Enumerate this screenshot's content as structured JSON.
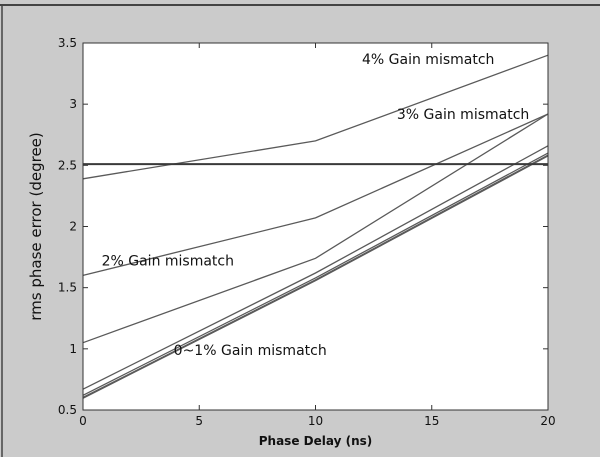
{
  "colors": {
    "frame_bg": "#cbcbcb",
    "axes_bg": "#ffffff",
    "line": "#5a5a5a",
    "threshold_line": "#3a3a3a",
    "text": "#111111"
  },
  "chart_data": {
    "type": "line",
    "title": "",
    "xlabel": "Phase Delay (ns)",
    "ylabel": "rms phase error (degree)",
    "xlim": [
      0,
      20
    ],
    "ylim": [
      0.5,
      3.5
    ],
    "xticks": [
      0,
      5,
      10,
      15,
      20
    ],
    "yticks": [
      0.5,
      1,
      1.5,
      2,
      2.5,
      3,
      3.5
    ],
    "xtick_labels": [
      "0",
      "5",
      "10",
      "15",
      "20"
    ],
    "ytick_labels": [
      "0.5",
      "1",
      "1.5",
      "2",
      "2.5",
      "3",
      "3.5"
    ],
    "grid": false,
    "legend": "none",
    "series": [
      {
        "x": [
          0,
          10,
          20
        ],
        "values": [
          0.6,
          1.56,
          2.58
        ]
      },
      {
        "x": [
          0,
          10,
          20
        ],
        "values": [
          0.62,
          1.58,
          2.6
        ]
      },
      {
        "x": [
          0,
          10,
          20
        ],
        "values": [
          0.67,
          1.62,
          2.66
        ]
      },
      {
        "x": [
          0,
          10,
          20
        ],
        "values": [
          1.05,
          1.74,
          2.92
        ]
      },
      {
        "x": [
          0,
          10,
          20
        ],
        "values": [
          1.6,
          2.07,
          2.92
        ]
      },
      {
        "x": [
          0,
          10,
          20
        ],
        "values": [
          2.39,
          2.7,
          3.4
        ]
      }
    ],
    "reference_line": {
      "y": 2.51
    },
    "annotations": [
      {
        "text": "4% Gain mismatch",
        "x": 12.0,
        "y": 3.33
      },
      {
        "text": "3% Gain mismatch",
        "x": 13.5,
        "y": 2.88
      },
      {
        "text": "2% Gain mismatch",
        "x": 0.8,
        "y": 1.68
      },
      {
        "text": "0~1% Gain mismatch",
        "x": 3.9,
        "y": 0.95
      }
    ]
  }
}
